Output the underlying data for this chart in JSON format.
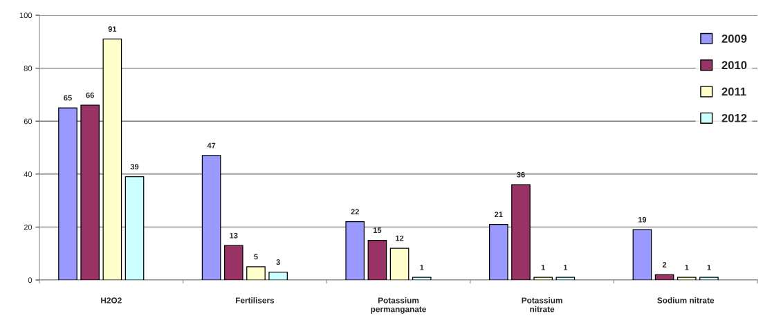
{
  "chart_data": {
    "type": "bar",
    "categories": [
      "H2O2",
      "Fertilisers",
      "Potassium\npermanganate",
      "Potassium\nnitrate",
      "Sodium nitrate"
    ],
    "series": [
      {
        "name": "2009",
        "color": "#9999ff",
        "values": [
          65,
          47,
          22,
          21,
          19
        ]
      },
      {
        "name": "2010",
        "color": "#993366",
        "values": [
          66,
          13,
          15,
          36,
          2
        ]
      },
      {
        "name": "2011",
        "color": "#ffffcc",
        "values": [
          91,
          5,
          12,
          1,
          1
        ]
      },
      {
        "name": "2012",
        "color": "#ccffff",
        "values": [
          39,
          3,
          1,
          1,
          1
        ]
      }
    ],
    "ylim": [
      0,
      100
    ],
    "yticks": [
      0,
      20,
      40,
      60,
      80,
      100
    ],
    "grid": "y",
    "legend": "right",
    "data_labels": true
  }
}
